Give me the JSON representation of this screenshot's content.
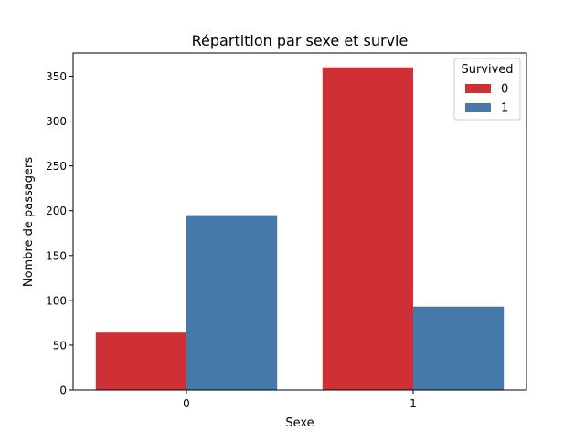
{
  "chart_data": {
    "type": "bar",
    "title": "Répartition par sexe et survie",
    "xlabel": "Sexe",
    "ylabel": "Nombre de passagers",
    "categories": [
      "0",
      "1"
    ],
    "series": [
      {
        "name": "0",
        "values": [
          64,
          360
        ],
        "color": "#cf3035"
      },
      {
        "name": "1",
        "values": [
          195,
          93
        ],
        "color": "#4579aa"
      }
    ],
    "ylim": [
      0,
      376
    ],
    "yticks": [
      0,
      50,
      100,
      150,
      200,
      250,
      300,
      350
    ],
    "legend": {
      "title": "Survived",
      "position": "top-right"
    },
    "grid": false
  }
}
